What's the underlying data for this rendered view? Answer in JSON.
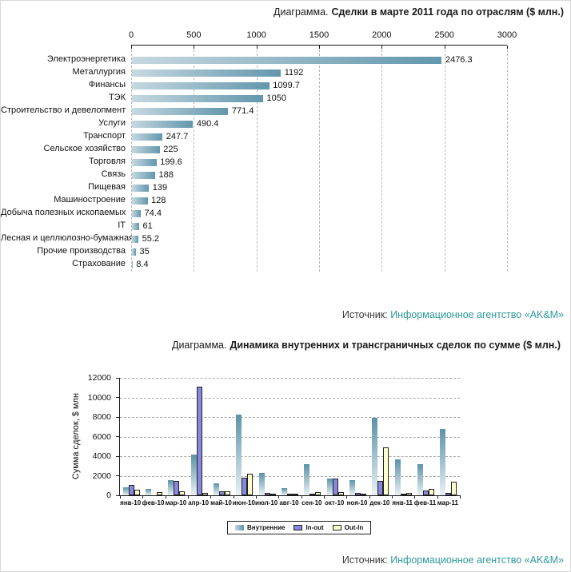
{
  "colors": {
    "link_teal": "#2d9898",
    "axis": "#1a1a1a",
    "grid": "#b0b0b0",
    "bar_gradient_light": "#c6d8e0",
    "bar_gradient_dark": "#6297ad",
    "teal_bar_top": "#5b92a8",
    "teal_bar_bottom": "#e9f2f5",
    "inout_purple": "#8787de",
    "outin_yellow": "#ffffcc"
  },
  "chart_data": [
    {
      "type": "bar",
      "orientation": "horizontal",
      "title_prefix": "Диаграмма.",
      "title": "Сделки в марте 2011 года по отраслям ($ млн.)",
      "xlabel": "",
      "ylabel": "",
      "xlim": [
        0,
        3000
      ],
      "x_ticks": [
        0,
        500,
        1000,
        1500,
        2000,
        2500,
        3000
      ],
      "grid": "vertical-dashed",
      "categories": [
        "Электроэнергетика",
        "Металлургия",
        "Финансы",
        "ТЭК",
        "Строительство и девелопмент",
        "Услуги",
        "Транспорт",
        "Сельское хозяйство",
        "Торговля",
        "Связь",
        "Пищевая",
        "Машиностроение",
        "Добыча полезных ископаемых",
        "IT",
        "Лесная и целлюлозно-бумажная",
        "Прочие производства",
        "Страхование"
      ],
      "values": [
        2476.3,
        1192,
        1099.7,
        1050,
        771.4,
        490.4,
        247.7,
        225,
        199.6,
        188,
        139,
        128,
        74.4,
        61,
        55.2,
        35,
        8.4
      ],
      "value_labels": [
        "2476.3",
        "1192",
        "1099.7",
        "1050",
        "771.4",
        "490.4",
        "247.7",
        "225",
        "199.6",
        "188",
        "139",
        "128",
        "74.4",
        "61",
        "55.2",
        "35",
        "8.4"
      ],
      "source_label": "Источник:",
      "source_link_text": "Информационное агентство «AK&M»"
    },
    {
      "type": "bar",
      "orientation": "vertical",
      "title_prefix": "Диаграмма.",
      "title": "Динамика внутренних и трансграничных сделок по сумме ($ млн.)",
      "xlabel": "",
      "ylabel": "Сумма сделок, $ млн",
      "ylim": [
        0,
        12000
      ],
      "y_ticks": [
        0,
        2000,
        4000,
        6000,
        8000,
        10000,
        12000
      ],
      "grid": "horizontal-dashed",
      "legend_position": "bottom-center",
      "categories": [
        "янв-10",
        "фев-10",
        "мар-10",
        "апр-10",
        "май-10",
        "июн-10",
        "июл-10",
        "авг-10",
        "сен-10",
        "окт-10",
        "ноя-10",
        "дек-10",
        "янв-11",
        "фев-11",
        "мар-11"
      ],
      "series": [
        {
          "name": "Внутренние",
          "style": "gradient-teal",
          "values": [
            800,
            650,
            1550,
            4150,
            1250,
            8250,
            2300,
            750,
            3200,
            1750,
            1550,
            7950,
            3650,
            3150,
            6800
          ]
        },
        {
          "name": "In-out",
          "style": "solid",
          "color": "#8787de",
          "values": [
            1050,
            0,
            1450,
            11100,
            400,
            1800,
            250,
            150,
            100,
            1750,
            270,
            1500,
            100,
            490,
            210
          ]
        },
        {
          "name": "Out-In",
          "style": "solid",
          "color": "#ffffcc",
          "values": [
            550,
            300,
            450,
            250,
            400,
            2200,
            150,
            150,
            300,
            330,
            100,
            4900,
            270,
            680,
            1400
          ]
        }
      ],
      "source_label": "Источник:",
      "source_link_text": "Информационное агентство «AK&M»"
    }
  ]
}
